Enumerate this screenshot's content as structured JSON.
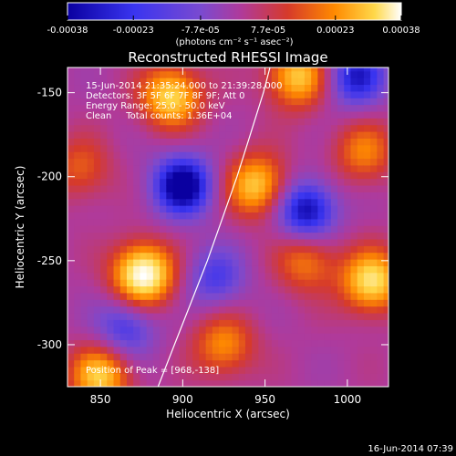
{
  "chart_data": {
    "type": "heatmap",
    "title": "Reconstructed RHESSI Image",
    "xlabel": "Heliocentric X (arcsec)",
    "ylabel": "Heliocentric Y (arcsec)",
    "xlim": [
      830,
      1025
    ],
    "ylim": [
      -325,
      -135
    ],
    "x_ticks": [
      850,
      900,
      950,
      1000
    ],
    "y_ticks": [
      -150,
      -200,
      -250,
      -300
    ],
    "colorbar": {
      "label": "(photons cm⁻² s⁻¹ asec⁻²)",
      "range": [
        -0.00038,
        0.00038
      ],
      "ticks": [
        "-0.00038",
        "-0.00023",
        "-7.7e-05",
        "7.7e-05",
        "0.00023",
        "0.00038"
      ],
      "colors": [
        "#0a00a0",
        "#3a35f0",
        "#7a4ad0",
        "#b03a9a",
        "#d63a2a",
        "#ff8a00",
        "#ffd84a",
        "#ffffff"
      ]
    },
    "annotations": [
      "15-Jun-2014 21:35:24.000 to 21:39:28.000",
      "Detectors: 3F 5F 6F 7F 8F 9F; Att 0",
      "Energy Range: 25.0 - 50.0 keV",
      "Clean     Total counts: 1.36E+04"
    ],
    "peak_label": "Position of Peak = [968,-138]",
    "peak": [
      968,
      -138
    ],
    "limb_line": [
      [
        885,
        -325
      ],
      [
        895,
        -300
      ],
      [
        905,
        -275
      ],
      [
        915,
        -250
      ],
      [
        924,
        -225
      ],
      [
        933,
        -200
      ],
      [
        941,
        -175
      ],
      [
        949,
        -150
      ],
      [
        953,
        -135
      ]
    ],
    "blobs": [
      {
        "x": 876,
        "y": -258,
        "amp": 1.0
      },
      {
        "x": 893,
        "y": -152,
        "amp": 0.75
      },
      {
        "x": 970,
        "y": -140,
        "amp": 0.7
      },
      {
        "x": 945,
        "y": -205,
        "amp": 0.7
      },
      {
        "x": 1015,
        "y": -262,
        "amp": 0.8
      },
      {
        "x": 850,
        "y": -318,
        "amp": 0.7
      },
      {
        "x": 925,
        "y": -300,
        "amp": 0.5
      },
      {
        "x": 838,
        "y": -195,
        "amp": 0.35
      },
      {
        "x": 975,
        "y": -250,
        "amp": 0.45
      },
      {
        "x": 1010,
        "y": -185,
        "amp": 0.45
      }
    ],
    "troughs": [
      {
        "x": 900,
        "y": -205,
        "amp": -0.8
      },
      {
        "x": 1005,
        "y": -140,
        "amp": -0.6
      },
      {
        "x": 975,
        "y": -220,
        "amp": -0.7
      },
      {
        "x": 865,
        "y": -290,
        "amp": -0.45
      },
      {
        "x": 920,
        "y": -260,
        "amp": -0.4
      }
    ]
  },
  "footer": {
    "timestamp": "16-Jun-2014 07:39"
  }
}
